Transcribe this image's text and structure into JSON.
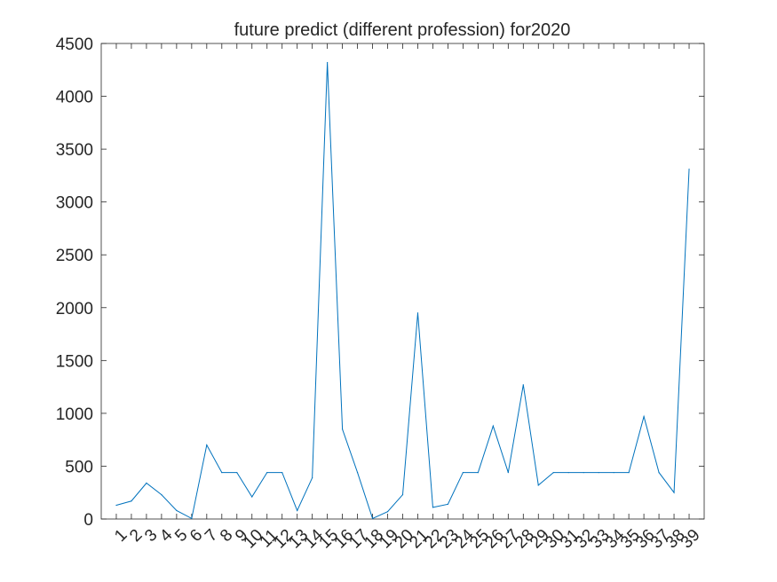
{
  "chart_data": {
    "type": "line",
    "title": "future predict (different profession) for2020",
    "xlabel": "",
    "ylabel": "",
    "ylim": [
      0,
      4500
    ],
    "xlim": [
      0,
      40
    ],
    "grid": false,
    "legend": "none",
    "y_ticks": [
      0,
      500,
      1000,
      1500,
      2000,
      2500,
      3000,
      3500,
      4000,
      4500
    ],
    "x_ticks": [
      1,
      2,
      3,
      4,
      5,
      6,
      7,
      8,
      9,
      10,
      11,
      12,
      13,
      14,
      15,
      16,
      17,
      18,
      19,
      20,
      21,
      22,
      23,
      24,
      25,
      26,
      27,
      28,
      29,
      30,
      31,
      32,
      33,
      34,
      35,
      36,
      37,
      38,
      39
    ],
    "series": [
      {
        "color": "#0072bd",
        "x": [
          1,
          2,
          3,
          4,
          5,
          6,
          7,
          8,
          9,
          10,
          11,
          12,
          13,
          14,
          15,
          16,
          17,
          18,
          19,
          20,
          21,
          22,
          23,
          24,
          25,
          26,
          27,
          28,
          29,
          30,
          31,
          32,
          33,
          34,
          35,
          36,
          37,
          38,
          39
        ],
        "values": [
          130,
          170,
          340,
          230,
          80,
          5,
          700,
          440,
          440,
          210,
          440,
          440,
          80,
          390,
          4320,
          850,
          440,
          5,
          70,
          230,
          1950,
          110,
          140,
          440,
          440,
          880,
          440,
          1270,
          320,
          440,
          440,
          440,
          440,
          440,
          440,
          970,
          440,
          250,
          3310
        ]
      }
    ]
  }
}
